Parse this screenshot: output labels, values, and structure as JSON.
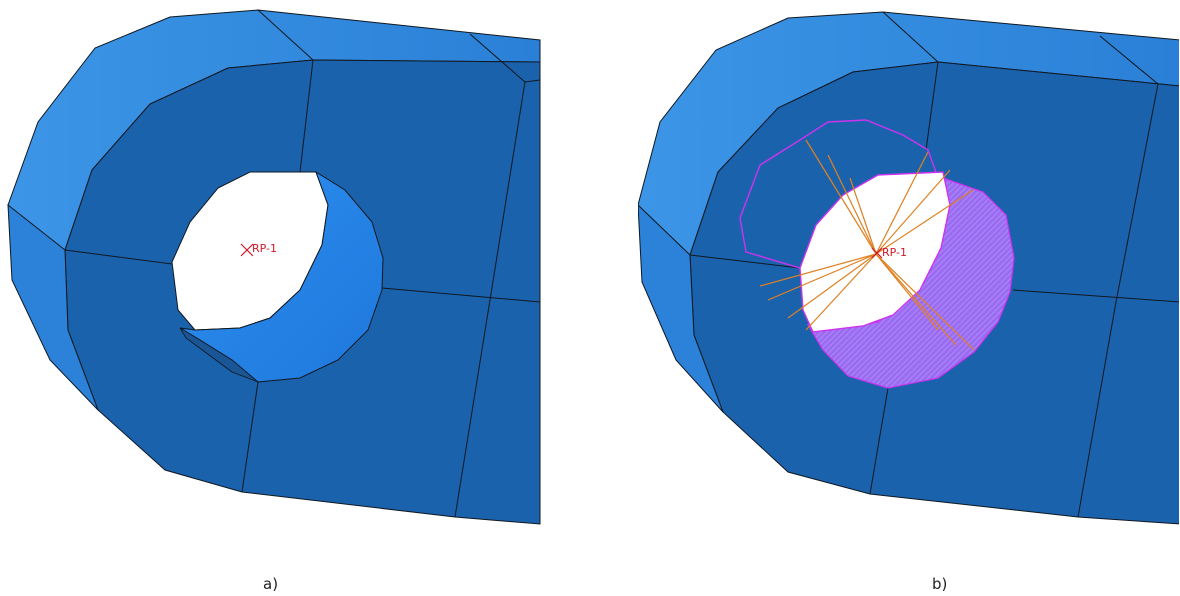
{
  "figure": {
    "panels": [
      {
        "id": "a",
        "caption": "a)",
        "reference_point": {
          "label": "RP-1",
          "marker": "x-mark-icon",
          "color": "#d0182a"
        }
      },
      {
        "id": "b",
        "caption": "b)",
        "reference_point": {
          "label": "RP-1",
          "marker": "x-mark-icon",
          "color": "#d0182a"
        },
        "coupling_surface_color": "#cc33ee",
        "coupling_lines_color": "#e08020"
      }
    ],
    "colors": {
      "part_front": "#1b62ad",
      "part_side": "#2a85d8",
      "edges": "#101820"
    }
  }
}
